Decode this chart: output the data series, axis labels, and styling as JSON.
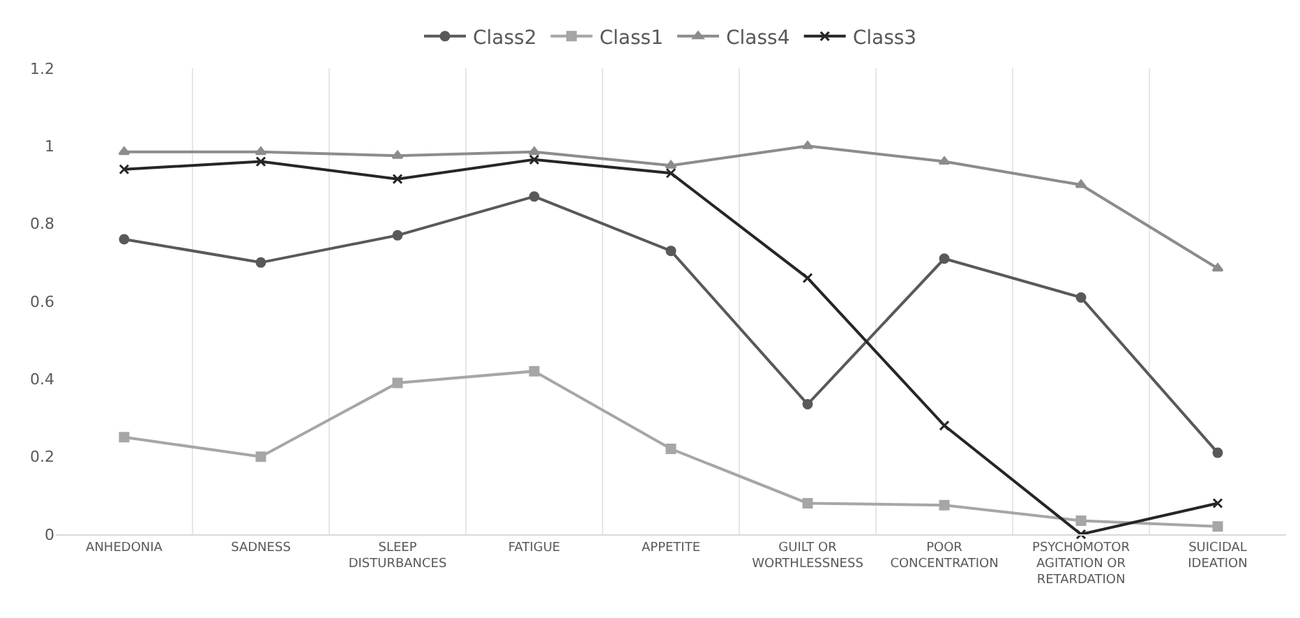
{
  "chart_data": {
    "type": "line",
    "categories": [
      "ANHEDONIA",
      "SADNESS",
      "SLEEP DISTURBANCES",
      "FATIGUE",
      "APPETITE",
      "GUILT OR WORTHLESSNESS",
      "POOR CONCENTRATION",
      "PSYCHOMOTOR AGITATION OR RETARDATION",
      "SUICIDAL IDEATION"
    ],
    "series": [
      {
        "name": "Class2",
        "color": "#595959",
        "marker": "circle",
        "values": [
          0.76,
          0.7,
          0.77,
          0.87,
          0.73,
          0.335,
          0.71,
          0.61,
          0.21
        ]
      },
      {
        "name": "Class1",
        "color": "#a6a6a6",
        "marker": "square",
        "values": [
          0.25,
          0.2,
          0.39,
          0.42,
          0.22,
          0.08,
          0.075,
          0.035,
          0.02
        ]
      },
      {
        "name": "Class4",
        "color": "#8c8c8c",
        "marker": "triangle",
        "values": [
          0.985,
          0.985,
          0.975,
          0.985,
          0.95,
          1.0,
          0.96,
          0.9,
          0.685
        ]
      },
      {
        "name": "Class3",
        "color": "#262626",
        "marker": "cross",
        "values": [
          0.94,
          0.96,
          0.915,
          0.965,
          0.93,
          0.66,
          0.28,
          0.0,
          0.08
        ]
      }
    ],
    "ylim": [
      0,
      1.2
    ],
    "yticks": [
      0,
      0.2,
      0.4,
      0.6,
      0.8,
      1,
      1.2
    ],
    "grid": "x",
    "legend": "top",
    "line_style": "solid"
  }
}
